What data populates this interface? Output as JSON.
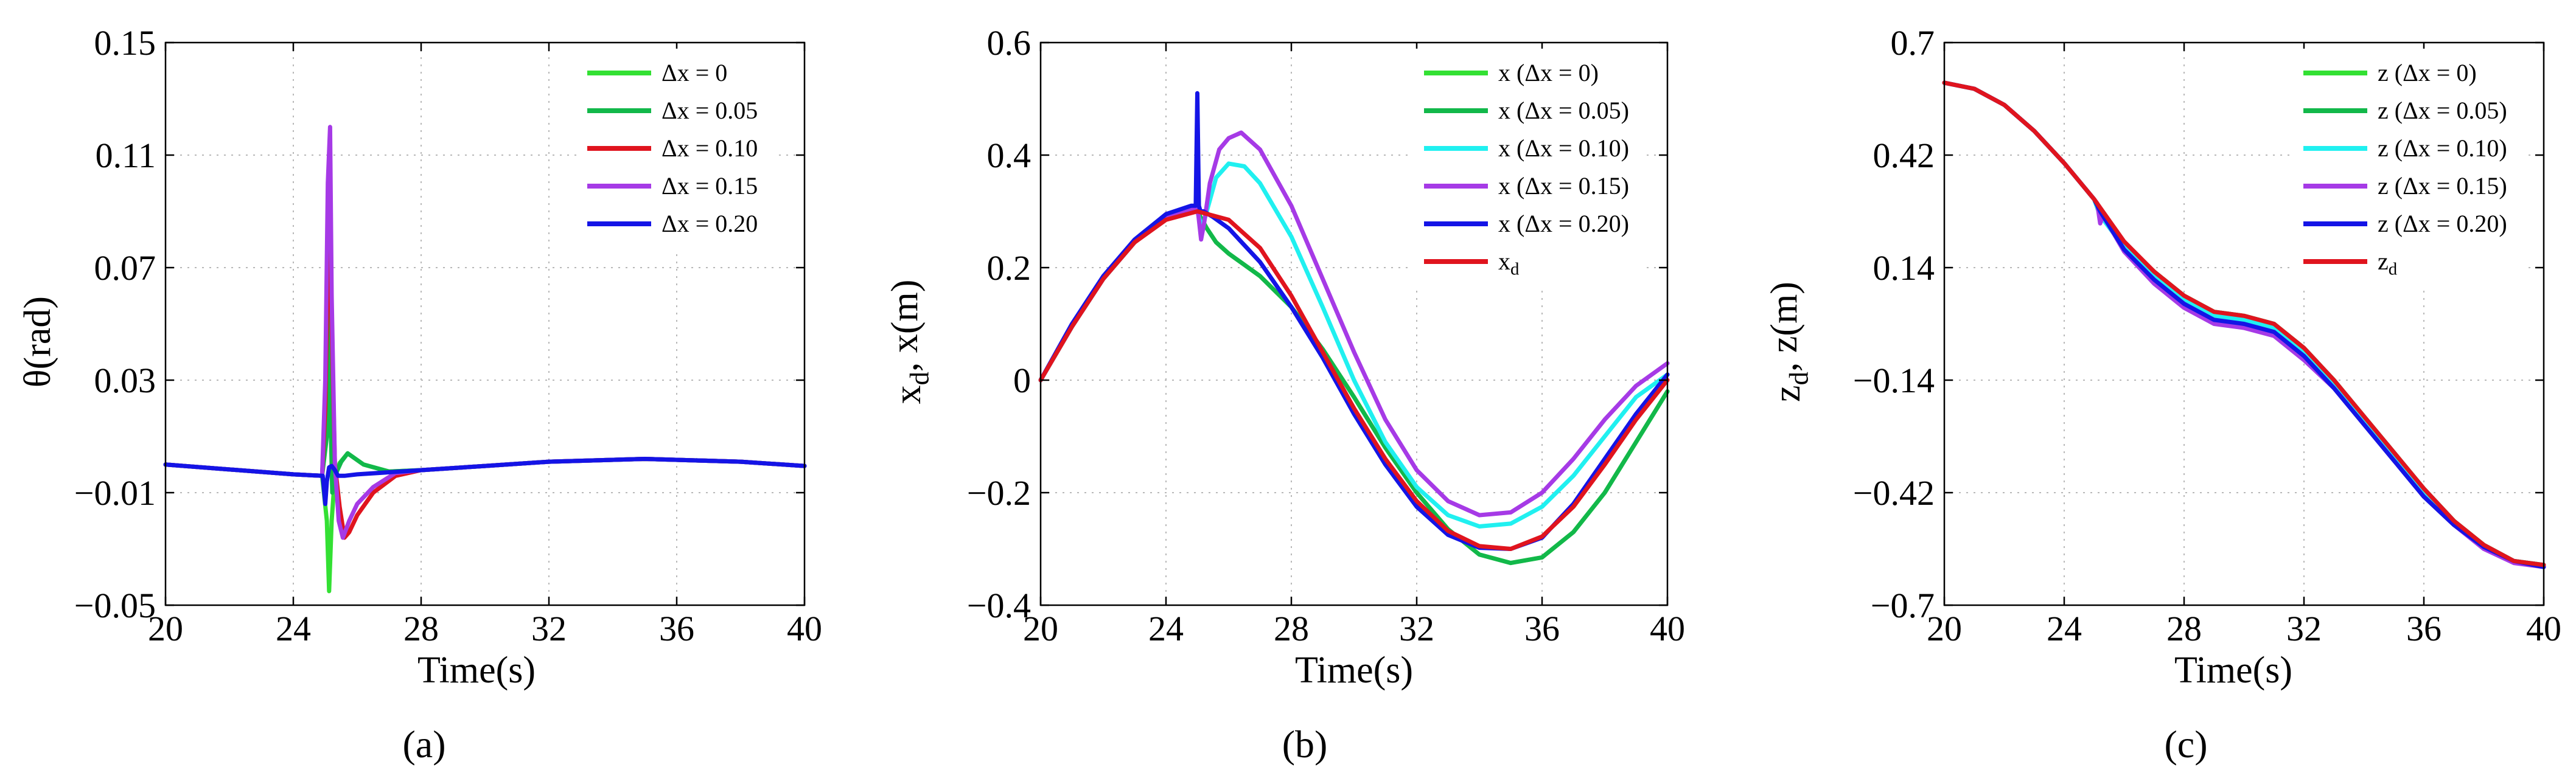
{
  "figure": {
    "captions": [
      "(a)",
      "(b)",
      "(c)"
    ]
  },
  "chart_data": [
    {
      "type": "line",
      "id": "a",
      "caption": "(a)",
      "title": "",
      "xlabel": "Time(s)",
      "ylabel": "θ(rad)",
      "xlim": [
        20,
        40
      ],
      "ylim": [
        -0.05,
        0.15
      ],
      "xticks": [
        20,
        24,
        28,
        32,
        36,
        40
      ],
      "yticks": [
        -0.05,
        -0.01,
        0.03,
        0.07,
        0.11,
        0.15
      ],
      "xtick_labels": [
        "20",
        "24",
        "28",
        "32",
        "36",
        "40"
      ],
      "ytick_labels": [
        "−0.05",
        "−0.01",
        "0.03",
        "0.07",
        "0.11",
        "0.15"
      ],
      "grid": true,
      "legend_position": "top-right",
      "series": [
        {
          "name": "Δx = 0",
          "color": "#33e033",
          "x": [
            20,
            24,
            24.9,
            25.05,
            25.12,
            25.2,
            25.3,
            25.45,
            25.7,
            26.2,
            27,
            28,
            30,
            32,
            35,
            38,
            40
          ],
          "y": [
            0.0,
            -0.0035,
            -0.004,
            -0.02,
            -0.045,
            -0.02,
            -0.004,
            0.0005,
            0.004,
            0.0,
            -0.0025,
            -0.002,
            -0.0005,
            0.001,
            0.002,
            0.001,
            -0.0005
          ]
        },
        {
          "name": "Δx = 0.05",
          "color": "#12b84a",
          "x": [
            20,
            24,
            24.9,
            25.05,
            25.1,
            25.16,
            25.22,
            25.3,
            25.5,
            25.7,
            26.2,
            27,
            28,
            30,
            32,
            35,
            38,
            40
          ],
          "y": [
            0.0,
            -0.0035,
            -0.004,
            0.01,
            0.06,
            0.02,
            -0.01,
            -0.004,
            0.001,
            0.004,
            0.0,
            -0.0025,
            -0.002,
            -0.0005,
            0.001,
            0.002,
            0.001,
            -0.0005
          ]
        },
        {
          "name": "Δx = 0.10",
          "color": "#e0141e",
          "x": [
            20,
            24,
            24.9,
            25.0,
            25.08,
            25.14,
            25.2,
            25.3,
            25.45,
            25.6,
            25.75,
            26.0,
            26.5,
            27.2,
            28,
            30,
            32,
            35,
            38,
            40
          ],
          "y": [
            0.0,
            -0.0035,
            -0.004,
            0.02,
            0.07,
            0.09,
            0.05,
            0.0,
            -0.015,
            -0.026,
            -0.024,
            -0.018,
            -0.01,
            -0.004,
            -0.002,
            -0.0005,
            0.001,
            0.002,
            0.001,
            -0.0005
          ]
        },
        {
          "name": "Δx = 0.15",
          "color": "#a63ae6",
          "x": [
            20,
            24,
            24.9,
            25.0,
            25.08,
            25.15,
            25.2,
            25.3,
            25.42,
            25.55,
            25.75,
            26.0,
            26.5,
            27.2,
            28,
            30,
            32,
            35,
            38,
            40
          ],
          "y": [
            0.0,
            -0.0035,
            -0.004,
            0.03,
            0.1,
            0.12,
            0.06,
            0.0,
            -0.02,
            -0.026,
            -0.02,
            -0.014,
            -0.008,
            -0.003,
            -0.002,
            -0.0005,
            0.001,
            0.002,
            0.001,
            -0.0005
          ]
        },
        {
          "name": "Δx = 0.20",
          "color": "#1414e6",
          "x": [
            20,
            24,
            24.92,
            25.0,
            25.05,
            25.12,
            25.2,
            25.3,
            25.4,
            25.6,
            26,
            28,
            30,
            32,
            35,
            38,
            40
          ],
          "y": [
            0.0,
            -0.0035,
            -0.004,
            -0.014,
            -0.006,
            -0.001,
            -0.0005,
            -0.002,
            -0.004,
            -0.004,
            -0.0035,
            -0.002,
            -0.0005,
            0.001,
            0.002,
            0.001,
            -0.0005
          ]
        }
      ]
    },
    {
      "type": "line",
      "id": "b",
      "caption": "(b)",
      "title": "",
      "xlabel": "Time(s)",
      "ylabel": "x_d, x(m)",
      "xlim": [
        20,
        40
      ],
      "ylim": [
        -0.4,
        0.6
      ],
      "xticks": [
        20,
        24,
        28,
        32,
        36,
        40
      ],
      "yticks": [
        -0.4,
        -0.2,
        0,
        0.2,
        0.4,
        0.6
      ],
      "xtick_labels": [
        "20",
        "24",
        "28",
        "32",
        "36",
        "40"
      ],
      "ytick_labels": [
        "−0.4",
        "−0.2",
        "0",
        "0.2",
        "0.4",
        "0.6"
      ],
      "grid": true,
      "legend_position": "top-right",
      "series": [
        {
          "name": "x (Δx = 0)",
          "color": "#33e033",
          "x": [
            20,
            21,
            22,
            23,
            24,
            24.8,
            25.0,
            25.3,
            25.6,
            26,
            27,
            28,
            29,
            30,
            31,
            32,
            33,
            34,
            35,
            36,
            37,
            38,
            39,
            40
          ],
          "y": [
            0.0,
            0.095,
            0.18,
            0.245,
            0.288,
            0.302,
            0.3,
            0.27,
            0.245,
            0.225,
            0.185,
            0.13,
            0.055,
            -0.03,
            -0.12,
            -0.2,
            -0.265,
            -0.31,
            -0.325,
            -0.315,
            -0.27,
            -0.2,
            -0.11,
            -0.02
          ]
        },
        {
          "name": "x (Δx = 0.05)",
          "color": "#12b84a",
          "x": [
            20,
            21,
            22,
            23,
            24,
            24.8,
            25.0,
            25.3,
            25.6,
            26,
            27,
            28,
            29,
            30,
            31,
            32,
            33,
            34,
            35,
            36,
            37,
            38,
            39,
            40
          ],
          "y": [
            0.0,
            0.095,
            0.18,
            0.245,
            0.288,
            0.302,
            0.3,
            0.27,
            0.245,
            0.225,
            0.185,
            0.13,
            0.055,
            -0.03,
            -0.12,
            -0.2,
            -0.265,
            -0.31,
            -0.325,
            -0.315,
            -0.27,
            -0.2,
            -0.11,
            -0.02
          ]
        },
        {
          "name": "x (Δx = 0.10)",
          "color": "#20f0f0",
          "x": [
            20,
            21,
            22,
            23,
            24,
            24.8,
            25.0,
            25.15,
            25.3,
            25.6,
            26.0,
            26.5,
            27,
            28,
            29,
            30,
            31,
            32,
            33,
            34,
            35,
            36,
            37,
            38,
            39,
            40
          ],
          "y": [
            0.0,
            0.095,
            0.18,
            0.245,
            0.288,
            0.302,
            0.3,
            0.27,
            0.3,
            0.36,
            0.385,
            0.38,
            0.35,
            0.255,
            0.13,
            0.0,
            -0.11,
            -0.19,
            -0.24,
            -0.26,
            -0.255,
            -0.225,
            -0.17,
            -0.1,
            -0.03,
            0.01
          ]
        },
        {
          "name": "x (Δx = 0.15)",
          "color": "#a63ae6",
          "x": [
            20,
            21,
            22,
            23,
            24,
            24.8,
            25.0,
            25.12,
            25.22,
            25.4,
            25.7,
            26.0,
            26.4,
            27,
            28,
            29,
            30,
            31,
            32,
            33,
            34,
            35,
            36,
            37,
            38,
            39,
            40
          ],
          "y": [
            0.0,
            0.095,
            0.18,
            0.245,
            0.288,
            0.302,
            0.31,
            0.25,
            0.28,
            0.35,
            0.41,
            0.43,
            0.44,
            0.41,
            0.31,
            0.18,
            0.05,
            -0.07,
            -0.16,
            -0.215,
            -0.24,
            -0.235,
            -0.2,
            -0.14,
            -0.07,
            -0.01,
            0.03
          ]
        },
        {
          "name": "x (Δx = 0.20)",
          "color": "#1414e6",
          "x": [
            20,
            21,
            22,
            23,
            24,
            24.8,
            24.95,
            25.0,
            25.05,
            25.1,
            25.2,
            25.5,
            26,
            27,
            28,
            29,
            30,
            31,
            32,
            33,
            34,
            35,
            36,
            37,
            38,
            39,
            40
          ],
          "y": [
            0.0,
            0.1,
            0.185,
            0.25,
            0.295,
            0.31,
            0.31,
            0.51,
            0.31,
            0.3,
            0.3,
            0.29,
            0.27,
            0.21,
            0.13,
            0.04,
            -0.06,
            -0.15,
            -0.225,
            -0.275,
            -0.298,
            -0.3,
            -0.28,
            -0.22,
            -0.14,
            -0.06,
            0.01
          ]
        },
        {
          "name": "x_d",
          "color": "#e0141e",
          "x": [
            20,
            21,
            22,
            23,
            24,
            25,
            26,
            27,
            28,
            29,
            30,
            31,
            32,
            33,
            34,
            35,
            36,
            37,
            38,
            39,
            40
          ],
          "y": [
            0.0,
            0.095,
            0.18,
            0.245,
            0.285,
            0.3,
            0.285,
            0.235,
            0.15,
            0.05,
            -0.05,
            -0.14,
            -0.215,
            -0.268,
            -0.295,
            -0.3,
            -0.278,
            -0.225,
            -0.15,
            -0.07,
            0.0
          ]
        }
      ]
    },
    {
      "type": "line",
      "id": "c",
      "caption": "(c)",
      "title": "",
      "xlabel": "Time(s)",
      "ylabel": "z_d, z(m)",
      "xlim": [
        20,
        40
      ],
      "ylim": [
        -0.7,
        0.7
      ],
      "xticks": [
        20,
        24,
        28,
        32,
        36,
        40
      ],
      "yticks": [
        -0.7,
        -0.42,
        -0.14,
        0.14,
        0.42,
        0.7
      ],
      "xtick_labels": [
        "20",
        "24",
        "28",
        "32",
        "36",
        "40"
      ],
      "ytick_labels": [
        "−0.7",
        "−0.42",
        "−0.14",
        "0.14",
        "0.42",
        "0.7"
      ],
      "grid": true,
      "legend_position": "top-right",
      "series": [
        {
          "name": "z (Δx = 0)",
          "color": "#33e033",
          "x": [
            20,
            21,
            22,
            23,
            24,
            25,
            25.2,
            26,
            27,
            28,
            29,
            30,
            31,
            32,
            33,
            34,
            35,
            36,
            37,
            38,
            39,
            40
          ],
          "y": [
            0.6,
            0.585,
            0.545,
            0.48,
            0.4,
            0.31,
            0.27,
            0.2,
            0.13,
            0.07,
            0.03,
            0.02,
            0.0,
            -0.06,
            -0.14,
            -0.23,
            -0.32,
            -0.41,
            -0.49,
            -0.55,
            -0.59,
            -0.6
          ]
        },
        {
          "name": "z (Δx = 0.05)",
          "color": "#12b84a",
          "x": [
            20,
            21,
            22,
            23,
            24,
            25,
            25.2,
            26,
            27,
            28,
            29,
            30,
            31,
            32,
            33,
            34,
            35,
            36,
            37,
            38,
            39,
            40
          ],
          "y": [
            0.6,
            0.585,
            0.545,
            0.48,
            0.4,
            0.31,
            0.27,
            0.2,
            0.13,
            0.07,
            0.03,
            0.02,
            0.0,
            -0.06,
            -0.14,
            -0.23,
            -0.32,
            -0.41,
            -0.49,
            -0.55,
            -0.59,
            -0.6
          ]
        },
        {
          "name": "z (Δx = 0.10)",
          "color": "#20f0f0",
          "x": [
            20,
            21,
            22,
            23,
            24,
            25,
            25.2,
            26,
            27,
            28,
            29,
            30,
            31,
            32,
            33,
            34,
            35,
            36,
            37,
            38,
            39,
            40
          ],
          "y": [
            0.6,
            0.585,
            0.545,
            0.48,
            0.4,
            0.31,
            0.27,
            0.19,
            0.12,
            0.06,
            0.02,
            0.01,
            -0.01,
            -0.07,
            -0.15,
            -0.24,
            -0.33,
            -0.42,
            -0.5,
            -0.555,
            -0.59,
            -0.6
          ]
        },
        {
          "name": "z (Δx = 0.15)",
          "color": "#a63ae6",
          "x": [
            20,
            21,
            22,
            23,
            24,
            25,
            25.1,
            25.2,
            25.3,
            26,
            27,
            28,
            29,
            30,
            31,
            32,
            33,
            34,
            35,
            36,
            37,
            38,
            39,
            40
          ],
          "y": [
            0.6,
            0.585,
            0.545,
            0.48,
            0.4,
            0.31,
            0.3,
            0.25,
            0.27,
            0.18,
            0.1,
            0.04,
            0.0,
            -0.01,
            -0.03,
            -0.09,
            -0.16,
            -0.25,
            -0.34,
            -0.43,
            -0.5,
            -0.56,
            -0.595,
            -0.605
          ]
        },
        {
          "name": "z (Δx = 0.20)",
          "color": "#1414e6",
          "x": [
            20,
            21,
            22,
            23,
            24,
            25,
            25.2,
            26,
            27,
            28,
            29,
            30,
            31,
            32,
            33,
            34,
            35,
            36,
            37,
            38,
            39,
            40
          ],
          "y": [
            0.6,
            0.585,
            0.545,
            0.48,
            0.4,
            0.31,
            0.28,
            0.185,
            0.11,
            0.05,
            0.01,
            0.0,
            -0.02,
            -0.08,
            -0.16,
            -0.25,
            -0.34,
            -0.43,
            -0.5,
            -0.555,
            -0.59,
            -0.605
          ]
        },
        {
          "name": "z_d",
          "color": "#e0141e",
          "x": [
            20,
            21,
            22,
            23,
            24,
            25,
            26,
            27,
            28,
            29,
            30,
            31,
            32,
            33,
            34,
            35,
            36,
            37,
            38,
            39,
            40
          ],
          "y": [
            0.6,
            0.585,
            0.545,
            0.48,
            0.4,
            0.31,
            0.205,
            0.13,
            0.07,
            0.03,
            0.02,
            0.0,
            -0.06,
            -0.14,
            -0.23,
            -0.32,
            -0.41,
            -0.49,
            -0.55,
            -0.59,
            -0.6
          ]
        }
      ]
    }
  ]
}
